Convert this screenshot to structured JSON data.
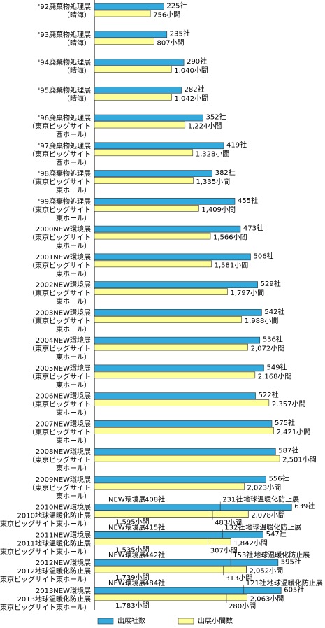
{
  "chart_data": {
    "type": "bar",
    "categories": [
      "'92廃棄物処理展\n（晴海）",
      "'93廃棄物処理展\n（晴海）",
      "'94廃棄物処理展\n（晴海）",
      "'95廃棄物処理展\n（晴海）",
      "'96廃棄物処理展\n（東京ビッグサイト\n西ホール）",
      "'97廃棄物処理展\n（東京ビッグサイト\n西ホール）",
      "'98廃棄物処理展\n（東京ビッグサイト\n東ホール）",
      "'99廃棄物処理展\n（東京ビッグサイト\n東ホール）",
      "2000NEW環境展\n（東京ビッグサイト\n東ホール）",
      "2001NEW環境展\n（東京ビッグサイト\n東ホール）",
      "2002NEW環境展\n（東京ビッグサイト\n東ホール）",
      "2003NEW環境展\n（東京ビッグサイト\n東ホール）",
      "2004NEW環境展\n（東京ビッグサイト\n東ホール）",
      "2005NEW環境展\n（東京ビッグサイト\n東ホール）",
      "2006NEW環境展\n（東京ビッグサイト\n東ホール）",
      "2007NEW環境展\n（東京ビッグサイト\n東ホール）",
      "2008NEW環境展\n（東京ビッグサイト\n東ホール）",
      "2009NEW環境展\n（東京ビッグサイト\n東ホール）",
      "2010NEW環境展\n2010地球温暖化防止展\n（東京ビッグサイト東ホール）",
      "2011NEW環境展\n2011地球温暖化防止展\n（東京ビッグサイト東ホール）",
      "2012NEW環境展\n2012地球温暖化防止展\n（東京ビッグサイト東ホール）",
      "2013NEW環境展\n2013地球温暖化防止展\n（東京ビッグサイト東ホール）"
    ],
    "xlim": [
      0,
      600
    ],
    "x2lim": [
      0,
      2500
    ],
    "series": [
      {
        "name": "出展社数",
        "color": "#33aadd",
        "values": [
          225,
          235,
          290,
          282,
          352,
          419,
          382,
          455,
          473,
          506,
          529,
          542,
          536,
          549,
          522,
          575,
          587,
          556,
          639,
          547,
          595,
          605
        ],
        "value_labels": [
          "225社",
          "235社",
          "290社",
          "282社",
          "352社",
          "419社",
          "382社",
          "455社",
          "473社",
          "506社",
          "529社",
          "542社",
          "536社",
          "549社",
          "522社",
          "575社",
          "587社",
          "556社",
          "639社",
          "547社",
          "595社",
          "605社"
        ],
        "segments": [
          null,
          null,
          null,
          null,
          null,
          null,
          null,
          null,
          null,
          null,
          null,
          null,
          null,
          null,
          null,
          null,
          null,
          null,
          [
            {
              "name": "NEW環境展",
              "value": 408,
              "label": "408社"
            },
            {
              "name": "地球温暖化防止展",
              "value": 231,
              "label": "231社"
            }
          ],
          [
            {
              "name": "NEW環境展",
              "value": 415,
              "label": "415社"
            },
            {
              "name": "地球温暖化防止展",
              "value": 132,
              "label": "132社"
            }
          ],
          [
            {
              "name": "NEW環境展",
              "value": 442,
              "label": "442社"
            },
            {
              "name": "地球温暖化防止展",
              "value": 153,
              "label": "153社"
            }
          ],
          [
            {
              "name": "NEW環境展",
              "value": 484,
              "label": "484社"
            },
            {
              "name": "地球温暖化防止展",
              "value": 121,
              "label": "121社"
            }
          ]
        ]
      },
      {
        "name": "出展小間数",
        "color": "#ffff99",
        "axis": "x2",
        "values": [
          756,
          807,
          1040,
          1042,
          1224,
          1328,
          1335,
          1409,
          1566,
          1581,
          1797,
          1988,
          2072,
          2168,
          2357,
          2421,
          2501,
          2023,
          2078,
          1842,
          2052,
          2063
        ],
        "value_labels": [
          "756小間",
          "807小間",
          "1,040小間",
          "1,042小間",
          "1,224小間",
          "1,328小間",
          "1,335小間",
          "1,409小間",
          "1,566小間",
          "1,581小間",
          "1,797小間",
          "1,988小間",
          "2,072小間",
          "2,168小間",
          "2,357小間",
          "2,421小間",
          "2,501小間",
          "2,023小間",
          "2,078小間",
          "1,842小間",
          "2,052小間",
          "2,063小間"
        ],
        "segments": [
          null,
          null,
          null,
          null,
          null,
          null,
          null,
          null,
          null,
          null,
          null,
          null,
          null,
          null,
          null,
          null,
          null,
          null,
          [
            {
              "value": 1595,
              "label": "1,595小間"
            },
            {
              "value": 483,
              "label": "483小間"
            }
          ],
          [
            {
              "value": 1535,
              "label": "1,535小間"
            },
            {
              "value": 307,
              "label": "307小間"
            }
          ],
          [
            {
              "value": 1739,
              "label": "1,739小間"
            },
            {
              "value": 313,
              "label": "313小間"
            }
          ],
          [
            {
              "value": 1783,
              "label": "1,783小間"
            },
            {
              "value": 280,
              "label": "280小間"
            }
          ]
        ]
      }
    ],
    "legend": "bottom"
  }
}
